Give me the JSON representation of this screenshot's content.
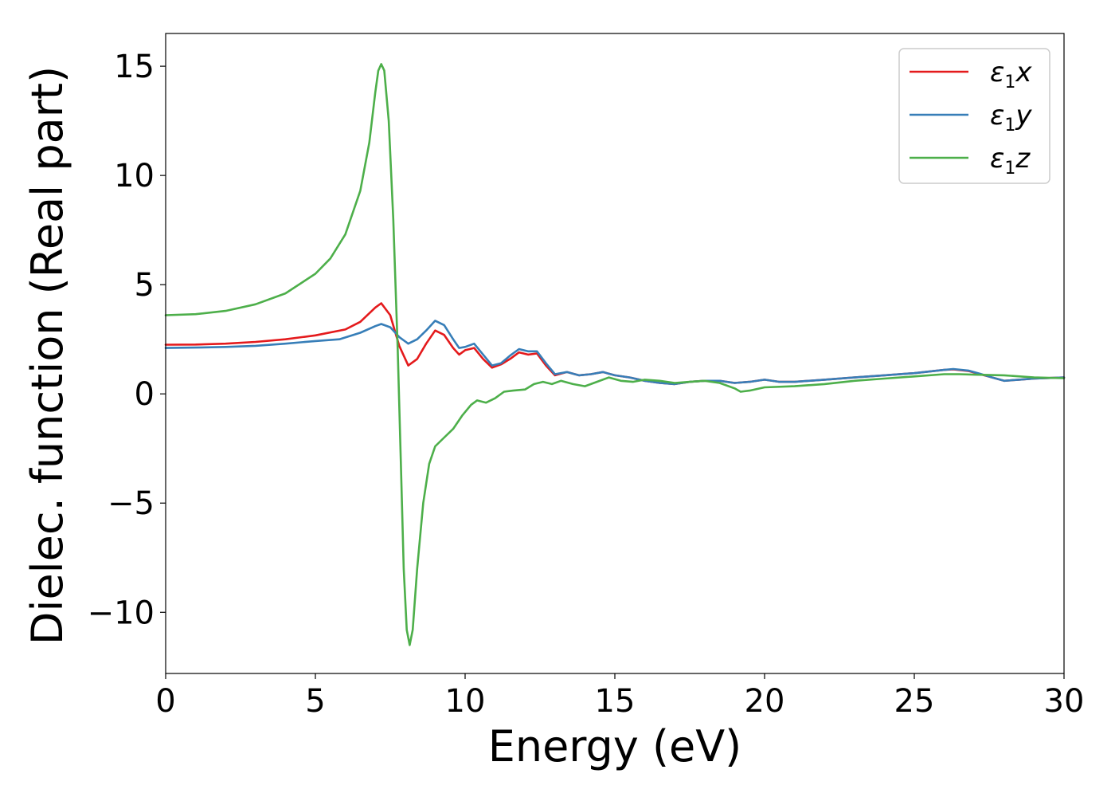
{
  "chart_data": {
    "type": "line",
    "xlabel": "Energy (eV)",
    "ylabel": "Dielec. function (Real part)",
    "xlim": [
      0,
      30
    ],
    "ylim": [
      -12.8,
      16.5
    ],
    "xticks": [
      0,
      5,
      10,
      15,
      20,
      25,
      30
    ],
    "xtick_labels": [
      "0",
      "5",
      "10",
      "15",
      "20",
      "25",
      "30"
    ],
    "yticks": [
      -10,
      -5,
      0,
      5,
      10,
      15
    ],
    "ytick_labels": [
      "−10",
      "−5",
      "0",
      "5",
      "10",
      "15"
    ],
    "grid": false,
    "legend_position": "top-right",
    "series": [
      {
        "name": "ε1x",
        "symbol": "ε",
        "subscript": "1",
        "suffix": "x",
        "color": "#e41a1c",
        "points": [
          [
            0,
            2.25
          ],
          [
            1,
            2.26
          ],
          [
            2,
            2.3
          ],
          [
            3,
            2.38
          ],
          [
            4,
            2.5
          ],
          [
            5,
            2.68
          ],
          [
            6,
            2.95
          ],
          [
            6.5,
            3.3
          ],
          [
            7,
            3.95
          ],
          [
            7.2,
            4.15
          ],
          [
            7.5,
            3.6
          ],
          [
            7.8,
            2.2
          ],
          [
            8.1,
            1.3
          ],
          [
            8.4,
            1.6
          ],
          [
            8.7,
            2.3
          ],
          [
            9,
            2.9
          ],
          [
            9.3,
            2.7
          ],
          [
            9.6,
            2.1
          ],
          [
            9.8,
            1.8
          ],
          [
            10,
            2.0
          ],
          [
            10.3,
            2.1
          ],
          [
            10.6,
            1.6
          ],
          [
            10.9,
            1.2
          ],
          [
            11.2,
            1.35
          ],
          [
            11.5,
            1.6
          ],
          [
            11.8,
            1.9
          ],
          [
            12.1,
            1.8
          ],
          [
            12.4,
            1.85
          ],
          [
            12.7,
            1.3
          ],
          [
            13,
            0.85
          ],
          [
            13.4,
            1.0
          ],
          [
            13.8,
            0.85
          ],
          [
            14.2,
            0.9
          ],
          [
            14.6,
            1.0
          ],
          [
            15,
            0.85
          ],
          [
            15.5,
            0.75
          ],
          [
            16,
            0.6
          ],
          [
            16.5,
            0.5
          ],
          [
            17,
            0.45
          ],
          [
            17.5,
            0.55
          ],
          [
            18,
            0.6
          ],
          [
            18.5,
            0.6
          ],
          [
            19,
            0.5
          ],
          [
            19.5,
            0.55
          ],
          [
            20,
            0.65
          ],
          [
            20.5,
            0.55
          ],
          [
            21,
            0.55
          ],
          [
            22,
            0.65
          ],
          [
            23,
            0.75
          ],
          [
            24,
            0.85
          ],
          [
            25,
            0.95
          ],
          [
            26,
            1.1
          ],
          [
            26.3,
            1.12
          ],
          [
            26.8,
            1.05
          ],
          [
            27.2,
            0.9
          ],
          [
            27.6,
            0.75
          ],
          [
            28,
            0.6
          ],
          [
            28.5,
            0.65
          ],
          [
            29,
            0.7
          ],
          [
            30,
            0.75
          ]
        ]
      },
      {
        "name": "ε1y",
        "symbol": "ε",
        "subscript": "1",
        "suffix": "y",
        "color": "#377eb8",
        "points": [
          [
            0,
            2.1
          ],
          [
            1,
            2.12
          ],
          [
            2,
            2.15
          ],
          [
            3,
            2.2
          ],
          [
            4,
            2.3
          ],
          [
            5,
            2.42
          ],
          [
            5.8,
            2.5
          ],
          [
            6.5,
            2.8
          ],
          [
            7,
            3.1
          ],
          [
            7.2,
            3.2
          ],
          [
            7.5,
            3.05
          ],
          [
            7.8,
            2.6
          ],
          [
            8.1,
            2.3
          ],
          [
            8.4,
            2.5
          ],
          [
            8.7,
            2.9
          ],
          [
            9,
            3.35
          ],
          [
            9.3,
            3.15
          ],
          [
            9.6,
            2.5
          ],
          [
            9.8,
            2.1
          ],
          [
            10,
            2.15
          ],
          [
            10.3,
            2.3
          ],
          [
            10.6,
            1.8
          ],
          [
            10.9,
            1.3
          ],
          [
            11.2,
            1.4
          ],
          [
            11.5,
            1.75
          ],
          [
            11.8,
            2.05
          ],
          [
            12.1,
            1.95
          ],
          [
            12.4,
            1.95
          ],
          [
            12.7,
            1.4
          ],
          [
            13,
            0.9
          ],
          [
            13.4,
            1.0
          ],
          [
            13.8,
            0.85
          ],
          [
            14.2,
            0.9
          ],
          [
            14.6,
            1.0
          ],
          [
            15,
            0.85
          ],
          [
            15.5,
            0.75
          ],
          [
            16,
            0.6
          ],
          [
            16.5,
            0.5
          ],
          [
            17,
            0.45
          ],
          [
            17.5,
            0.55
          ],
          [
            18,
            0.6
          ],
          [
            18.5,
            0.6
          ],
          [
            19,
            0.5
          ],
          [
            19.5,
            0.55
          ],
          [
            20,
            0.65
          ],
          [
            20.5,
            0.55
          ],
          [
            21,
            0.55
          ],
          [
            22,
            0.65
          ],
          [
            23,
            0.75
          ],
          [
            24,
            0.85
          ],
          [
            25,
            0.95
          ],
          [
            26,
            1.1
          ],
          [
            26.3,
            1.14
          ],
          [
            26.8,
            1.07
          ],
          [
            27.2,
            0.92
          ],
          [
            27.6,
            0.75
          ],
          [
            28,
            0.6
          ],
          [
            28.5,
            0.65
          ],
          [
            29,
            0.7
          ],
          [
            30,
            0.75
          ]
        ]
      },
      {
        "name": "ε1z",
        "symbol": "ε",
        "subscript": "1",
        "suffix": "z",
        "color": "#4daf4a",
        "points": [
          [
            0,
            3.6
          ],
          [
            1,
            3.65
          ],
          [
            2,
            3.8
          ],
          [
            3,
            4.1
          ],
          [
            4,
            4.6
          ],
          [
            5,
            5.5
          ],
          [
            5.5,
            6.2
          ],
          [
            6,
            7.3
          ],
          [
            6.5,
            9.3
          ],
          [
            6.8,
            11.5
          ],
          [
            7,
            13.8
          ],
          [
            7.1,
            14.8
          ],
          [
            7.2,
            15.1
          ],
          [
            7.3,
            14.8
          ],
          [
            7.45,
            12.5
          ],
          [
            7.6,
            8.0
          ],
          [
            7.75,
            2.0
          ],
          [
            7.85,
            -3.0
          ],
          [
            7.95,
            -8.0
          ],
          [
            8.05,
            -10.8
          ],
          [
            8.15,
            -11.5
          ],
          [
            8.25,
            -10.8
          ],
          [
            8.4,
            -8.0
          ],
          [
            8.6,
            -5.0
          ],
          [
            8.8,
            -3.2
          ],
          [
            9,
            -2.4
          ],
          [
            9.3,
            -2.0
          ],
          [
            9.6,
            -1.6
          ],
          [
            9.9,
            -1.0
          ],
          [
            10.2,
            -0.5
          ],
          [
            10.4,
            -0.3
          ],
          [
            10.7,
            -0.4
          ],
          [
            11,
            -0.2
          ],
          [
            11.3,
            0.1
          ],
          [
            11.6,
            0.15
          ],
          [
            12,
            0.2
          ],
          [
            12.3,
            0.45
          ],
          [
            12.6,
            0.55
          ],
          [
            12.9,
            0.45
          ],
          [
            13.2,
            0.6
          ],
          [
            13.6,
            0.45
          ],
          [
            14,
            0.35
          ],
          [
            14.4,
            0.55
          ],
          [
            14.8,
            0.75
          ],
          [
            15.2,
            0.6
          ],
          [
            15.6,
            0.55
          ],
          [
            16,
            0.65
          ],
          [
            16.5,
            0.6
          ],
          [
            17,
            0.5
          ],
          [
            17.5,
            0.55
          ],
          [
            18,
            0.6
          ],
          [
            18.5,
            0.5
          ],
          [
            19,
            0.25
          ],
          [
            19.2,
            0.1
          ],
          [
            19.5,
            0.15
          ],
          [
            20,
            0.3
          ],
          [
            21,
            0.35
          ],
          [
            22,
            0.45
          ],
          [
            23,
            0.6
          ],
          [
            24,
            0.7
          ],
          [
            25,
            0.8
          ],
          [
            26,
            0.9
          ],
          [
            26.5,
            0.9
          ],
          [
            27,
            0.88
          ],
          [
            28,
            0.85
          ],
          [
            29,
            0.75
          ],
          [
            30,
            0.72
          ]
        ]
      }
    ]
  }
}
